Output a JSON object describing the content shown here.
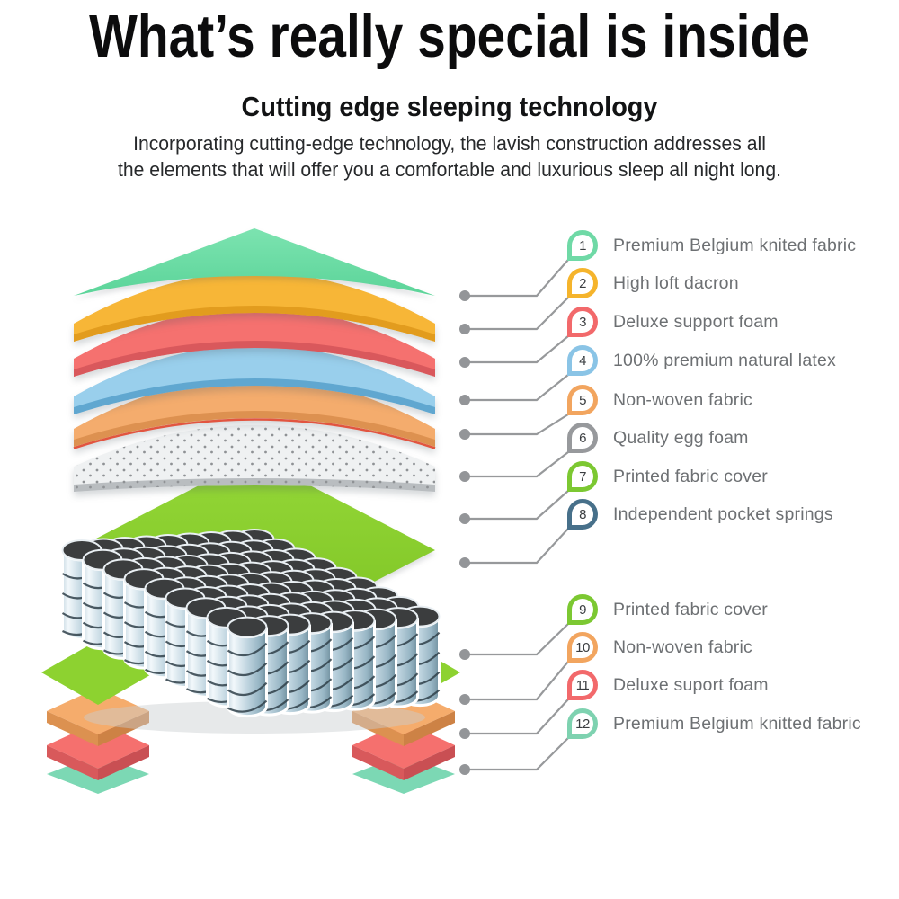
{
  "header": {
    "title": "What’s really special is inside",
    "subtitle": "Cutting edge sleeping technology",
    "description_line1": "Incorporating cutting-edge technology, the lavish construction addresses all",
    "description_line2": "the elements that will offer you a comfortable and luxurious sleep all night long."
  },
  "legend": {
    "items": [
      {
        "num": "1",
        "label": "Premium Belgium knited fabric",
        "color": "#6fd9a6"
      },
      {
        "num": "2",
        "label": "High loft dacron",
        "color": "#f5b42c"
      },
      {
        "num": "3",
        "label": "Deluxe support foam",
        "color": "#f2696b"
      },
      {
        "num": "4",
        "label": "100% premium natural latex",
        "color": "#8ac4e6"
      },
      {
        "num": "5",
        "label": "Non-woven fabric",
        "color": "#f2a55f"
      },
      {
        "num": "6",
        "label": "Quality egg foam",
        "color": "#97999c"
      },
      {
        "num": "7",
        "label": "Printed fabric cover",
        "color": "#7cc832"
      },
      {
        "num": "8",
        "label": "Independent pocket springs",
        "color": "#47708a"
      },
      {
        "num": "9",
        "label": "Printed fabric cover",
        "color": "#7cc832"
      },
      {
        "num": "10",
        "label": "Non-woven fabric",
        "color": "#f2a55f"
      },
      {
        "num": "11",
        "label": "Deluxe suport foam",
        "color": "#f2696b"
      },
      {
        "num": "12",
        "label": "Premium Belgium knitted fabric",
        "color": "#7ed2b0"
      }
    ]
  }
}
